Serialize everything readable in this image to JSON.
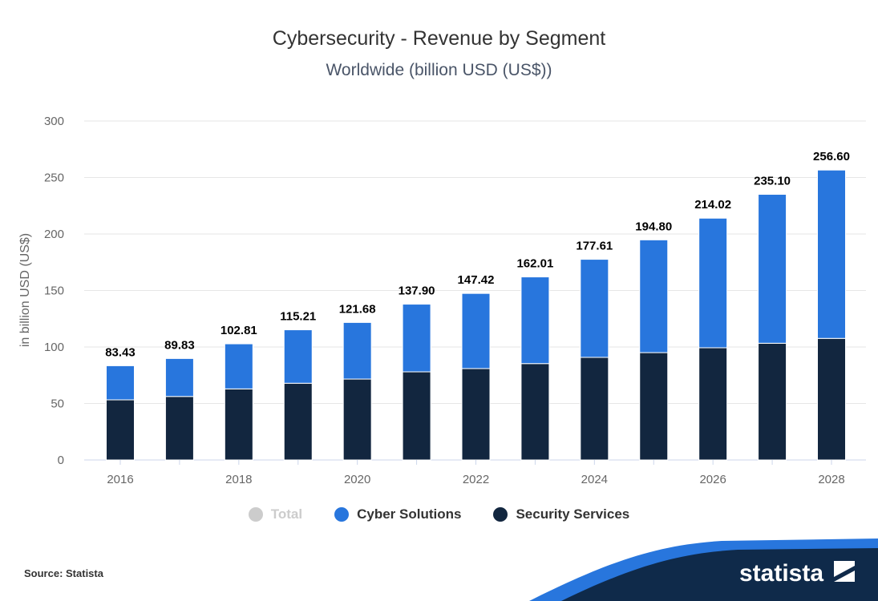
{
  "chart_data": {
    "type": "bar",
    "stacked": true,
    "title": "Cybersecurity - Revenue by Segment",
    "subtitle": "Worldwide (billion USD (US$))",
    "ylabel": "in billion USD (US$)",
    "xlabel": "",
    "ylim": [
      0,
      300
    ],
    "yticks": [
      0,
      50,
      100,
      150,
      200,
      250,
      300
    ],
    "xtick_labels": [
      "2016",
      "2018",
      "2020",
      "2022",
      "2024",
      "2026",
      "2028"
    ],
    "grid": true,
    "legend_placement": "bottom",
    "categories": [
      "2016",
      "2017",
      "2018",
      "2019",
      "2020",
      "2021",
      "2022",
      "2023",
      "2024",
      "2025",
      "2026",
      "2027",
      "2028"
    ],
    "totals": [
      "83.43",
      "89.83",
      "102.81",
      "115.21",
      "121.68",
      "137.90",
      "147.42",
      "162.01",
      "177.61",
      "194.80",
      "214.02",
      "235.10",
      "256.60"
    ],
    "series": [
      {
        "name": "Security Services",
        "color": "#12263f",
        "values": [
          53.2,
          56.2,
          62.9,
          67.9,
          71.6,
          78.0,
          80.9,
          85.3,
          90.8,
          95.0,
          99.3,
          103.3,
          107.6
        ]
      },
      {
        "name": "Cyber Solutions",
        "color": "#2876dd",
        "values": [
          30.2,
          33.6,
          39.9,
          47.3,
          50.1,
          59.9,
          66.5,
          76.7,
          86.8,
          99.8,
          114.7,
          131.8,
          149.0
        ]
      }
    ],
    "legend": [
      {
        "name": "Total",
        "color": "#cccccc",
        "text_color": "#cccccc"
      },
      {
        "name": "Cyber Solutions",
        "color": "#2876dd",
        "text_color": "#333333"
      },
      {
        "name": "Security Services",
        "color": "#12263f",
        "text_color": "#333333"
      }
    ]
  },
  "footer": {
    "source": "Source: Statista",
    "logo": "statista"
  }
}
